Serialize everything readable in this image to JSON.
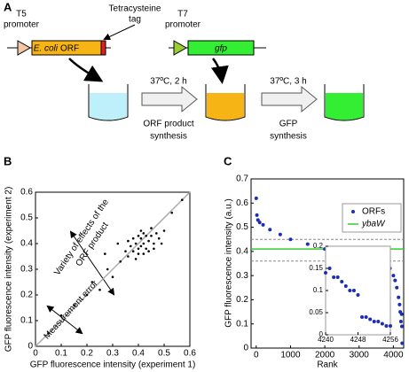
{
  "panels": {
    "a": "A",
    "b": "B",
    "c": "C"
  },
  "diagram": {
    "t5_promoter": [
      "T5",
      "promoter"
    ],
    "tag": [
      "Tetracysteine",
      "tag"
    ],
    "orf": [
      "E. coli",
      "ORF"
    ],
    "t7_promoter": [
      "T7",
      "promoter"
    ],
    "gfp": "gfp",
    "step1_condition": "37ºC, 2 h",
    "step1_label": [
      "ORF product",
      "synthesis"
    ],
    "step2_condition": "37ºC, 3 h",
    "step2_label": [
      "GFP",
      "synthesis"
    ]
  },
  "chart_data": [
    {
      "type": "scatter",
      "color": "#000000",
      "xlabel": "GFP fluorescence intensity (experiment 1)",
      "ylabel": "GFP fluorescence intensity (experiment 2)",
      "xlim": [
        0,
        0.6
      ],
      "ylim": [
        0,
        0.6
      ],
      "xticks": [
        0,
        0.1,
        0.2,
        0.3,
        0.4,
        0.5,
        0.6
      ],
      "yticks": [
        0,
        0.1,
        0.2,
        0.3,
        0.4,
        0.5,
        0.6
      ],
      "diagonal": true,
      "annotations": [
        [
          "Variety of effects of the",
          "ORF product"
        ],
        [
          "Measurement error"
        ]
      ],
      "x": [
        0.36,
        0.38,
        0.4,
        0.42,
        0.44,
        0.41,
        0.39,
        0.43,
        0.45,
        0.47,
        0.37,
        0.4,
        0.46,
        0.42,
        0.38,
        0.44,
        0.48,
        0.35,
        0.41,
        0.43,
        0.39,
        0.45,
        0.5,
        0.36,
        0.42,
        0.4,
        0.46,
        0.33,
        0.49,
        0.41,
        0.05,
        0.1,
        0.15,
        0.2,
        0.22,
        0.25,
        0.28,
        0.3,
        0.32,
        0.53,
        0.57,
        0.27
      ],
      "values": [
        0.35,
        0.37,
        0.38,
        0.4,
        0.41,
        0.42,
        0.4,
        0.38,
        0.43,
        0.44,
        0.39,
        0.36,
        0.4,
        0.44,
        0.42,
        0.37,
        0.42,
        0.37,
        0.39,
        0.43,
        0.34,
        0.46,
        0.45,
        0.41,
        0.36,
        0.43,
        0.38,
        0.33,
        0.4,
        0.45,
        0.05,
        0.12,
        0.16,
        0.2,
        0.25,
        0.22,
        0.3,
        0.27,
        0.4,
        0.52,
        0.57,
        0.36
      ]
    },
    {
      "type": "scatter",
      "xlabel": "Rank",
      "ylabel": "GFP fluorescence intensity (a.u.)",
      "xlim": [
        -150,
        4300
      ],
      "ylim": [
        0,
        0.7
      ],
      "xticks": [
        0,
        1000,
        2000,
        3000,
        4000
      ],
      "yticks": [
        0,
        0.1,
        0.2,
        0.3,
        0.4,
        0.5,
        0.6,
        0.7
      ],
      "legend": "upper right",
      "x": [
        0,
        20,
        50,
        100,
        200,
        400,
        700,
        1000,
        1500,
        2000,
        2500,
        3000,
        3300,
        3500,
        3700,
        3800,
        3900,
        4000,
        4050,
        4100,
        4150,
        4180,
        4200,
        4220,
        4240,
        4248,
        4256
      ],
      "series": [
        {
          "name": "ORFs",
          "color": "#1a2db5",
          "values": [
            0.62,
            0.55,
            0.53,
            0.52,
            0.51,
            0.49,
            0.47,
            0.45,
            0.43,
            0.41,
            0.4,
            0.385,
            0.375,
            0.36,
            0.35,
            0.34,
            0.33,
            0.3,
            0.28,
            0.25,
            0.21,
            0.18,
            0.15,
            0.11,
            0.14,
            0.09,
            0.02
          ]
        }
      ],
      "hlines": [
        {
          "name": "ybaW",
          "color": "#33cc33",
          "value": 0.41
        },
        {
          "value": 0.45,
          "dashed": true,
          "color": "#888888"
        },
        {
          "value": 0.36,
          "dashed": true,
          "color": "#888888"
        }
      ],
      "inset": {
        "xlim": [
          4240,
          4256
        ],
        "ylim": [
          0,
          0.2
        ],
        "xticks": [
          4240,
          4248,
          4256
        ],
        "yticks": [
          0,
          0.05,
          0.1,
          0.15,
          0.2
        ],
        "x": [
          4240,
          4241,
          4242,
          4243,
          4244,
          4245,
          4246,
          4247,
          4248,
          4249,
          4250,
          4251,
          4252,
          4253,
          4254,
          4255,
          4256
        ],
        "values": [
          0.14,
          0.15,
          0.13,
          0.13,
          0.12,
          0.11,
          0.1,
          0.1,
          0.09,
          0.04,
          0.04,
          0.035,
          0.03,
          0.03,
          0.025,
          0.02,
          0.02
        ]
      }
    }
  ]
}
